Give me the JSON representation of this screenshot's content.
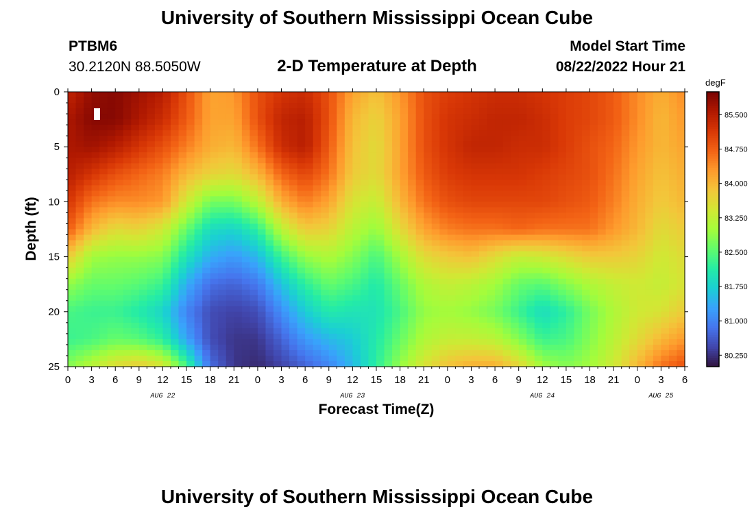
{
  "header": {
    "title": "University of Southern Mississippi Ocean Cube",
    "station_id": "PTBM6",
    "station_coords": "30.2120N  88.5050W",
    "plot_title": "2-D Temperature at Depth",
    "model_start_label": "Model Start Time",
    "model_start_value": "08/22/2022 Hour 21"
  },
  "footer": {
    "title": "University of Southern Mississippi Ocean Cube"
  },
  "chart_data": {
    "type": "heatmap",
    "title": "2-D Temperature at Depth",
    "xlabel": "Forecast Time(Z)",
    "ylabel": "Depth (ft)",
    "x_ticks": [
      "0",
      "3",
      "6",
      "9",
      "12",
      "15",
      "18",
      "21",
      "0",
      "3",
      "6",
      "9",
      "12",
      "15",
      "18",
      "21",
      "0",
      "3",
      "6",
      "9",
      "12",
      "15",
      "18",
      "21",
      "0",
      "3",
      "6"
    ],
    "x_range_hours": [
      0,
      78
    ],
    "date_labels": [
      {
        "label": "AUG 22",
        "hour": 12
      },
      {
        "label": "AUG 23",
        "hour": 36
      },
      {
        "label": "AUG 24",
        "hour": 60
      },
      {
        "label": "AUG 25",
        "hour": 75
      }
    ],
    "y_ticks": [
      0,
      5,
      10,
      15,
      20,
      25
    ],
    "ylim": [
      0,
      25
    ],
    "colorbar": {
      "units": "degF",
      "min": 80.0,
      "max": 86.0,
      "tick_labels": [
        "85.500",
        "84.750",
        "84.000",
        "83.250",
        "82.500",
        "81.750",
        "81.000",
        "80.250"
      ],
      "tick_values": [
        85.5,
        84.75,
        84.0,
        83.25,
        82.5,
        81.75,
        81.0,
        80.25
      ],
      "colormap": [
        "#30123b",
        "#4145ab",
        "#4675ed",
        "#39a2fc",
        "#1bcfd4",
        "#24eca6",
        "#61fc6c",
        "#a4fc3b",
        "#d1e834",
        "#f3c63a",
        "#fe9b2d",
        "#f36315",
        "#d93806",
        "#b11901",
        "#7a0403"
      ]
    },
    "grid_columns_hours": [
      0,
      3,
      6,
      9,
      12,
      15,
      18,
      21,
      24,
      27,
      30,
      33,
      36,
      39,
      42,
      45,
      48,
      51,
      54,
      57,
      60,
      63,
      66,
      69,
      72,
      75,
      78
    ],
    "grid_rows_depth_ft": [
      0,
      2.5,
      5,
      7.5,
      10,
      12.5,
      15,
      17.5,
      20,
      22.5,
      25
    ],
    "values_degF": [
      [
        85.4,
        85.8,
        85.9,
        85.7,
        85.5,
        84.9,
        84.2,
        84.3,
        84.9,
        85.2,
        85.3,
        84.9,
        84.2,
        83.9,
        84.3,
        84.9,
        85.1,
        85.2,
        85.3,
        85.3,
        85.2,
        85.1,
        85.0,
        84.8,
        84.4,
        84.1,
        84.4
      ],
      [
        85.6,
        85.9,
        85.9,
        85.6,
        85.3,
        84.8,
        84.2,
        84.2,
        84.9,
        85.4,
        85.5,
        84.9,
        84.0,
        83.7,
        84.2,
        84.9,
        85.2,
        85.3,
        85.4,
        85.4,
        85.3,
        85.1,
        85.0,
        84.8,
        84.4,
        84.0,
        84.3
      ],
      [
        85.6,
        85.7,
        85.5,
        85.2,
        84.9,
        84.5,
        84.1,
        84.0,
        84.6,
        85.3,
        85.5,
        84.8,
        83.9,
        83.6,
        84.2,
        84.9,
        85.2,
        85.4,
        85.4,
        85.3,
        85.3,
        85.1,
        84.9,
        84.7,
        84.3,
        84.0,
        84.2
      ],
      [
        85.5,
        85.2,
        84.9,
        84.7,
        84.5,
        84.0,
        83.7,
        83.6,
        84.0,
        84.7,
        85.0,
        84.6,
        83.8,
        83.6,
        84.2,
        84.8,
        85.1,
        85.2,
        85.2,
        85.2,
        85.1,
        85.0,
        84.9,
        84.6,
        84.2,
        83.9,
        84.1
      ],
      [
        85.2,
        84.6,
        84.4,
        84.4,
        84.3,
        83.4,
        82.7,
        82.7,
        83.2,
        84.1,
        84.5,
        84.2,
        83.5,
        83.3,
        84.0,
        84.6,
        84.9,
        85.0,
        85.0,
        85.0,
        85.0,
        84.9,
        84.8,
        84.5,
        84.1,
        83.8,
        84.0
      ],
      [
        84.8,
        84.0,
        83.6,
        83.7,
        83.4,
        82.6,
        81.9,
        81.8,
        82.2,
        83.2,
        83.8,
        83.7,
        83.2,
        82.9,
        83.6,
        84.2,
        84.5,
        84.6,
        84.6,
        84.7,
        84.6,
        84.6,
        84.6,
        84.3,
        84.0,
        83.6,
        83.8
      ],
      [
        83.8,
        83.0,
        82.9,
        82.9,
        82.8,
        82.0,
        81.4,
        81.2,
        81.5,
        82.3,
        82.9,
        83.1,
        82.8,
        82.4,
        83.0,
        83.6,
        83.8,
        83.9,
        83.6,
        83.3,
        83.4,
        83.6,
        83.8,
        83.8,
        83.7,
        83.4,
        83.6
      ],
      [
        82.9,
        82.6,
        82.6,
        82.5,
        82.3,
        81.4,
        80.8,
        80.7,
        80.9,
        81.6,
        82.2,
        82.6,
        82.4,
        82.1,
        82.6,
        83.1,
        83.3,
        83.2,
        83.0,
        82.6,
        82.5,
        82.8,
        83.1,
        83.3,
        83.4,
        83.3,
        83.5
      ],
      [
        82.4,
        82.3,
        82.3,
        82.1,
        81.8,
        81.0,
        80.5,
        80.4,
        80.5,
        81.1,
        81.7,
        82.1,
        82.0,
        82.0,
        82.4,
        82.9,
        83.0,
        82.9,
        82.7,
        82.3,
        81.9,
        82.2,
        82.7,
        83.1,
        83.4,
        83.5,
        83.8
      ],
      [
        82.3,
        82.4,
        82.6,
        82.5,
        82.2,
        81.3,
        80.5,
        80.3,
        80.3,
        80.7,
        81.2,
        81.5,
        81.7,
        82.1,
        82.6,
        83.1,
        83.3,
        83.3,
        83.2,
        82.8,
        82.3,
        82.4,
        82.8,
        83.2,
        83.6,
        84.0,
        84.3
      ],
      [
        82.8,
        83.2,
        83.6,
        83.8,
        83.5,
        82.4,
        80.8,
        80.3,
        80.2,
        80.4,
        80.7,
        81.0,
        81.5,
        82.2,
        82.9,
        83.5,
        83.9,
        84.1,
        84.1,
        83.7,
        83.0,
        82.8,
        83.0,
        83.4,
        84.0,
        84.6,
        84.9
      ]
    ]
  }
}
